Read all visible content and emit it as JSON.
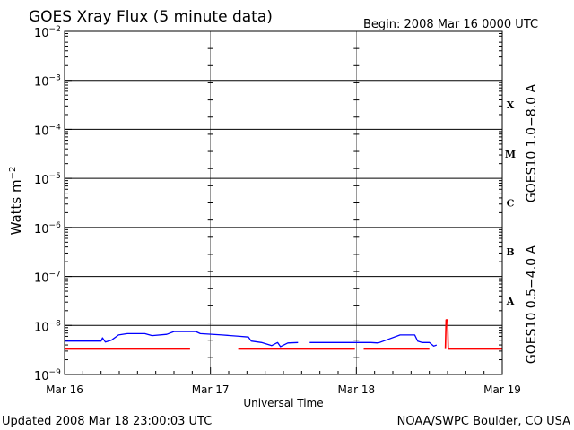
{
  "header": {
    "title": "GOES Xray Flux (5 minute data)",
    "begin": "Begin:  2008 Mar 16 0000 UTC"
  },
  "footer": {
    "updated": "Updated 2008 Mar 18 23:00:03 UTC",
    "source": "NOAA/SWPC Boulder, CO USA"
  },
  "colors": {
    "long_channel": "#ff0000",
    "short_channel": "#0000ff",
    "grid": "#000000",
    "background": "#ffffff"
  },
  "chart_data": {
    "type": "line",
    "title": "GOES Xray Flux (5 minute data)",
    "xlabel": "Universal Time",
    "ylabel": "Watts m-2",
    "ylabel_base": "Watts m",
    "ylabel_exp": "−2",
    "y_scale": "log",
    "ylim": [
      1e-09,
      0.01
    ],
    "x_ticks": [
      "Mar 16",
      "Mar 17",
      "Mar 18",
      "Mar 19"
    ],
    "y_ticks": [
      {
        "value": 1e-09,
        "base": "10",
        "exp": "−9"
      },
      {
        "value": 1e-08,
        "base": "10",
        "exp": "−8"
      },
      {
        "value": 1e-07,
        "base": "10",
        "exp": "−7"
      },
      {
        "value": 1e-06,
        "base": "10",
        "exp": "−6"
      },
      {
        "value": 1e-05,
        "base": "10",
        "exp": "−5"
      },
      {
        "value": 0.0001,
        "base": "10",
        "exp": "−4"
      },
      {
        "value": 0.001,
        "base": "10",
        "exp": "−3"
      },
      {
        "value": 0.01,
        "base": "10",
        "exp": "−2"
      }
    ],
    "flare_classes": [
      {
        "label": "A",
        "value": 1e-08
      },
      {
        "label": "B",
        "value": 1e-07
      },
      {
        "label": "C",
        "value": 1e-06
      },
      {
        "label": "M",
        "value": 1e-05
      },
      {
        "label": "X",
        "value": 0.0001
      }
    ],
    "grid": true,
    "series": [
      {
        "name": "GOES10 1.0−8.0 A",
        "color": "#ff0000",
        "segments": [
          [
            [
              0.0,
              3.3e-09
            ],
            [
              0.86,
              3.3e-09
            ]
          ],
          [
            [
              1.19,
              3.3e-09
            ],
            [
              1.99,
              3.3e-09
            ]
          ],
          [
            [
              2.05,
              3.3e-09
            ],
            [
              2.5,
              3.3e-09
            ]
          ],
          [
            [
              2.61,
              3.3e-09
            ],
            [
              2.615,
              1.3e-08
            ],
            [
              2.625,
              1.3e-08
            ],
            [
              2.63,
              3.3e-09
            ],
            [
              3.0,
              3.3e-09
            ]
          ]
        ]
      },
      {
        "name": "GOES10 0.5−4.0 A",
        "color": "#0000ff",
        "segments": [
          [
            [
              0.0,
              4.8e-09
            ],
            [
              0.25,
              4.8e-09
            ],
            [
              0.26,
              5.6e-09
            ],
            [
              0.28,
              4.6e-09
            ],
            [
              0.32,
              5e-09
            ],
            [
              0.37,
              6.4e-09
            ],
            [
              0.43,
              6.8e-09
            ],
            [
              0.55,
              6.8e-09
            ],
            [
              0.6,
              6.2e-09
            ],
            [
              0.7,
              6.6e-09
            ],
            [
              0.75,
              7.5e-09
            ],
            [
              0.9,
              7.5e-09
            ],
            [
              0.93,
              6.8e-09
            ],
            [
              1.08,
              6.4e-09
            ],
            [
              1.2,
              6e-09
            ],
            [
              1.26,
              5.8e-09
            ],
            [
              1.28,
              4.8e-09
            ],
            [
              1.35,
              4.5e-09
            ],
            [
              1.42,
              3.9e-09
            ],
            [
              1.46,
              4.5e-09
            ],
            [
              1.48,
              3.7e-09
            ],
            [
              1.53,
              4.4e-09
            ],
            [
              1.6,
              4.5e-09
            ]
          ],
          [
            [
              1.68,
              4.5e-09
            ],
            [
              2.1,
              4.5e-09
            ],
            [
              2.15,
              4.4e-09
            ],
            [
              2.2,
              5e-09
            ],
            [
              2.3,
              6.4e-09
            ],
            [
              2.4,
              6.4e-09
            ],
            [
              2.42,
              4.8e-09
            ],
            [
              2.45,
              4.5e-09
            ],
            [
              2.5,
              4.5e-09
            ],
            [
              2.53,
              3.8e-09
            ],
            [
              2.55,
              4e-09
            ]
          ]
        ]
      }
    ]
  }
}
